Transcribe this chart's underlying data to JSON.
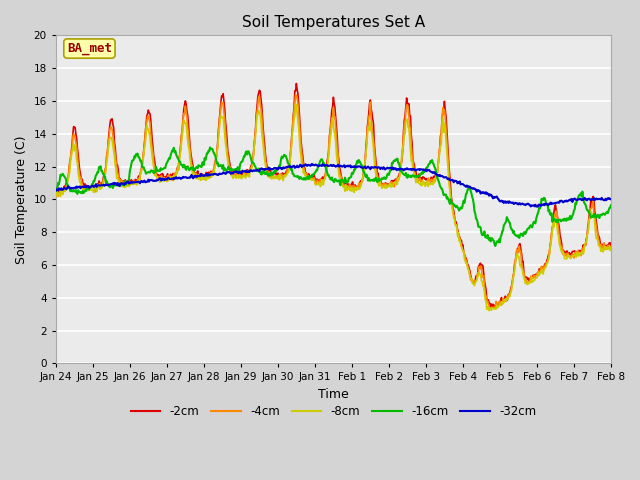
{
  "title": "Soil Temperatures Set A",
  "xlabel": "Time",
  "ylabel": "Soil Temperature (C)",
  "annotation": "BA_met",
  "ylim": [
    0,
    20
  ],
  "plot_bg_color": "#ebebeb",
  "fig_bg_color": "#d4d4d4",
  "grid_color": "#ffffff",
  "series_colors": {
    "-2cm": "#dd0000",
    "-4cm": "#ff8800",
    "-8cm": "#cccc00",
    "-16cm": "#00bb00",
    "-32cm": "#0000cc"
  },
  "x_tick_labels": [
    "Jan 24",
    "Jan 25",
    "Jan 26",
    "Jan 27",
    "Jan 28",
    "Jan 29",
    "Jan 30",
    "Jan 31",
    "Feb 1",
    "Feb 2",
    "Feb 3",
    "Feb 4",
    "Feb 5",
    "Feb 6",
    "Feb 7",
    "Feb 8"
  ],
  "yticks": [
    0,
    2,
    4,
    6,
    8,
    10,
    12,
    14,
    16,
    18,
    20
  ],
  "num_points": 721,
  "days": 15
}
